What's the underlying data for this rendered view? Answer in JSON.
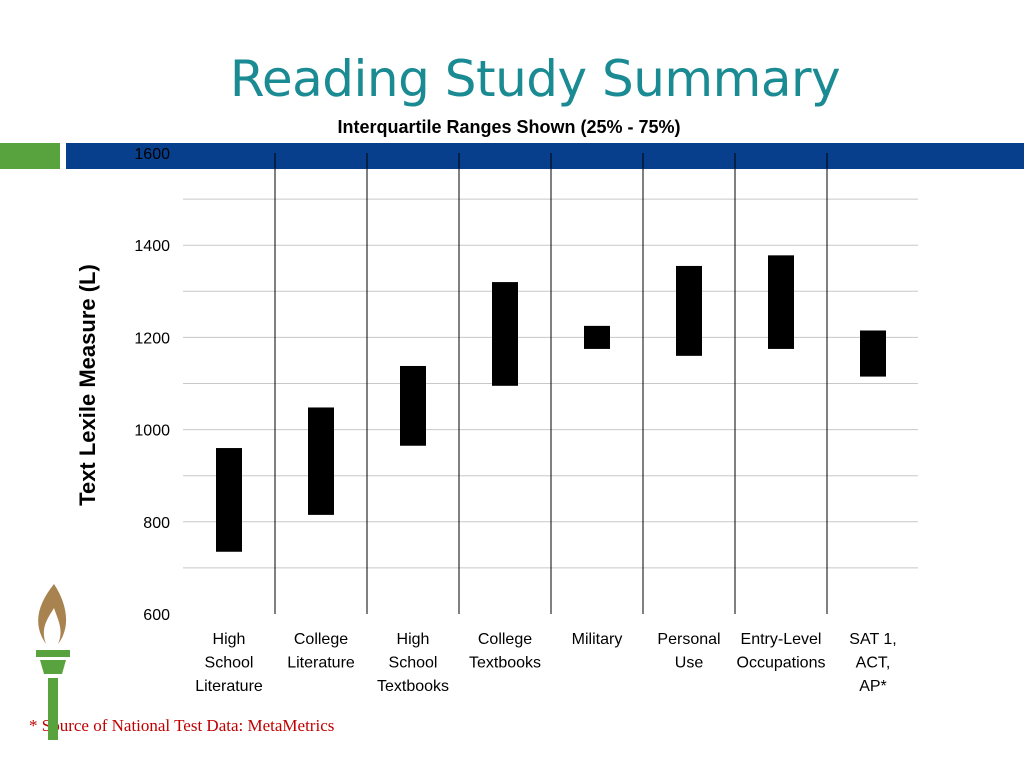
{
  "slide": {
    "title": "Reading Study Summary",
    "source_note": "* Source of National Test Data: MetaMetrics"
  },
  "colors": {
    "title": "#1a8a93",
    "banner_blue": "#073f8c",
    "banner_green": "#58a33e",
    "bars": "#000000",
    "source_note": "#c00000"
  },
  "chart_data": {
    "type": "bar",
    "subtype": "floating-range",
    "title": "Interquartile Ranges Shown (25% - 75%)",
    "xlabel": "",
    "ylabel": "Text Lexile Measure (L)",
    "ylim": [
      600,
      1600
    ],
    "yticks": [
      "600",
      "800",
      "1000",
      "1200",
      "1400",
      "1600"
    ],
    "grid": true,
    "categories": [
      [
        "High",
        "School",
        "Literature"
      ],
      [
        "College",
        "Literature"
      ],
      [
        "High",
        "School",
        "Textbooks"
      ],
      [
        "College",
        "Textbooks"
      ],
      [
        "Military"
      ],
      [
        "Personal",
        "Use"
      ],
      [
        "Entry-Level",
        "Occupations"
      ],
      [
        "SAT 1,",
        "ACT,",
        "AP*"
      ]
    ],
    "series": [
      {
        "low": [
          735,
          815,
          965,
          1095,
          1175,
          1160,
          1175,
          1115
        ],
        "high": [
          960,
          1048,
          1138,
          1320,
          1225,
          1355,
          1378,
          1215
        ]
      }
    ]
  }
}
